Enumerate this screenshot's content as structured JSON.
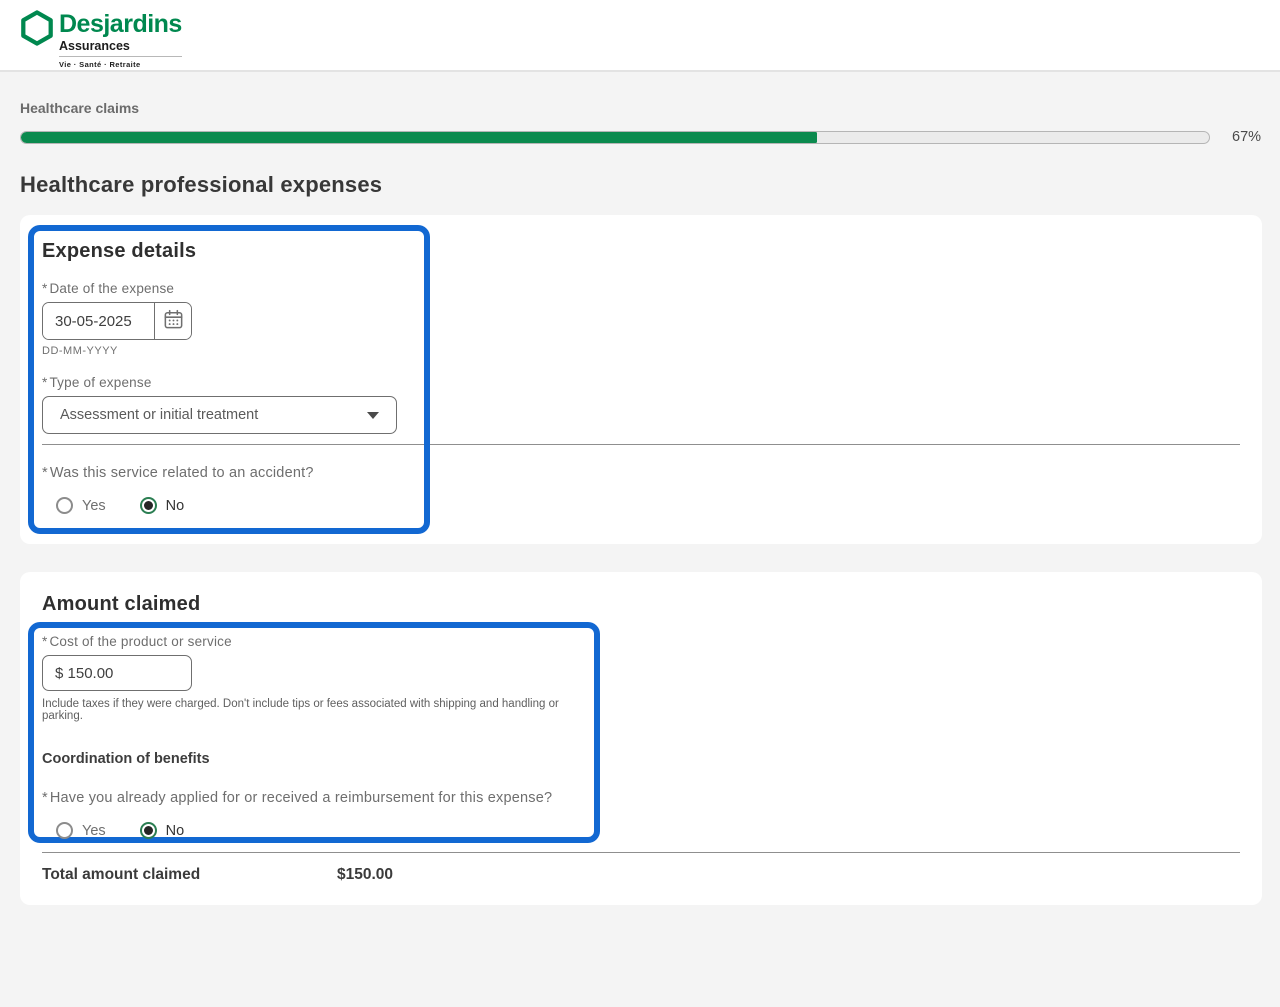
{
  "brand": {
    "name": "Desjardins",
    "division": "Assurances",
    "tagline": "Vie · Santé · Retraite"
  },
  "ui": {
    "required_marker": "*"
  },
  "progress": {
    "label": "Healthcare claims",
    "percent": 67,
    "percent_label": "67%"
  },
  "page": {
    "title": "Healthcare professional expenses"
  },
  "expense_details": {
    "heading": "Expense details",
    "date": {
      "label": "Date of the expense",
      "value": "30-05-2025",
      "format_hint": "DD-MM-YYYY"
    },
    "type": {
      "label": "Type of expense",
      "value": "Assessment or initial treatment"
    },
    "accident_question": {
      "label": "Was this service related to an accident?",
      "options": [
        {
          "label": "Yes",
          "selected": false
        },
        {
          "label": "No",
          "selected": true
        }
      ]
    }
  },
  "amount_claimed": {
    "heading": "Amount claimed",
    "cost": {
      "label": "Cost of the product or service",
      "value": "$ 150.00",
      "hint": "Include taxes if they were charged. Don't include tips or fees associated with shipping and handling or parking."
    },
    "coordination": {
      "heading": "Coordination of benefits",
      "question": "Have you already applied for or received a reimbursement for this expense?",
      "options": [
        {
          "label": "Yes",
          "selected": false
        },
        {
          "label": "No",
          "selected": true
        }
      ]
    },
    "total": {
      "label": "Total amount claimed",
      "value": "$150.00"
    }
  },
  "colors": {
    "brand_green": "#00884F",
    "progress_green": "#0B8A4E",
    "highlight_blue": "#1268D2"
  }
}
